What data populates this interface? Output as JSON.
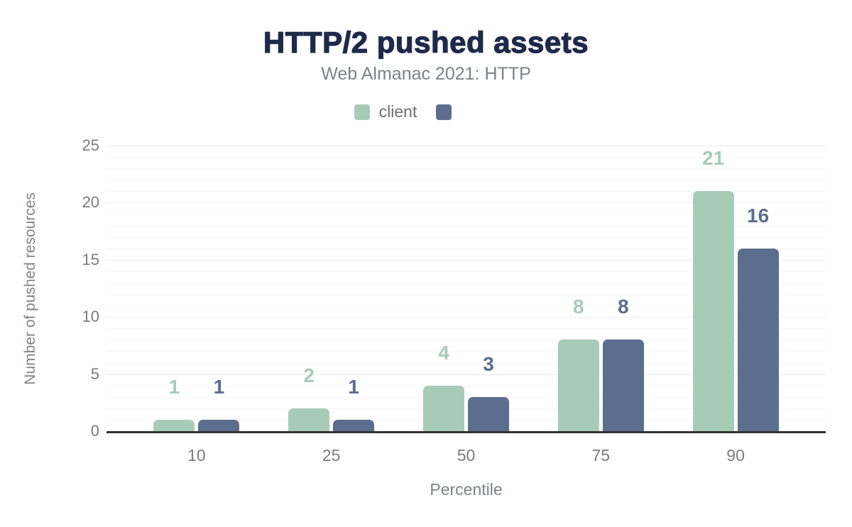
{
  "chart_data": {
    "type": "bar",
    "title": "HTTP/2 pushed assets",
    "subtitle": "Web Almanac 2021: HTTP",
    "xlabel": "Percentile",
    "ylabel": "Number of pushed resources",
    "categories": [
      "10",
      "25",
      "50",
      "75",
      "90"
    ],
    "series": [
      {
        "name": "client",
        "color": "#a8cbb7",
        "values": [
          1,
          2,
          4,
          8,
          21
        ]
      },
      {
        "name": "",
        "color": "#5b6e8e",
        "values": [
          1,
          1,
          3,
          8,
          16
        ]
      }
    ],
    "ylim": [
      0,
      25
    ],
    "yticks": [
      0,
      5,
      10,
      15,
      20,
      25
    ],
    "grid": {
      "orientation": "horizontal",
      "minor_step": 1,
      "major_step": 5
    },
    "legend_position": "top",
    "bar_value_labels": true,
    "colors": {
      "title": "#1e2a4a",
      "subtitle": "#7d8289",
      "tick_labels": "#7c7c7c",
      "axis_titles": "#7f8388",
      "legend_text": "#6e6e6e",
      "axis_line": "#333333",
      "grid_major": "#ececec",
      "grid_minor": "#f6f6f6"
    }
  }
}
